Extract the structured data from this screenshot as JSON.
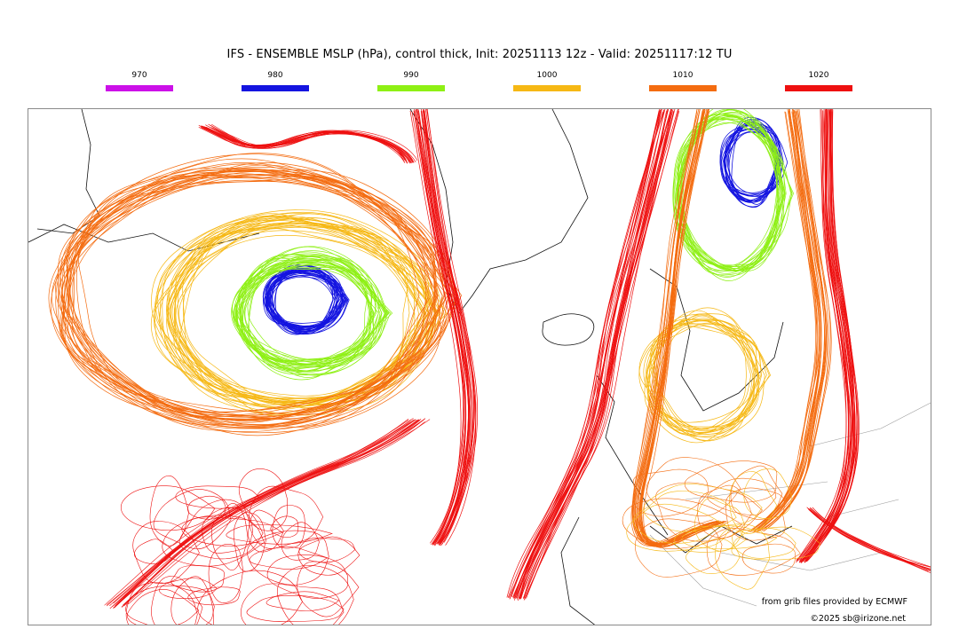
{
  "title": "IFS - ENSEMBLE MSLP (hPa), control thick, Init: 20251113 12z - Valid: 20251117:12 TU",
  "legend": [
    {
      "label": "970",
      "color": "#cc10e8"
    },
    {
      "label": "980",
      "color": "#1414e0"
    },
    {
      "label": "990",
      "color": "#8ef014"
    },
    {
      "label": "1000",
      "color": "#f6b814"
    },
    {
      "label": "1010",
      "color": "#f46c10"
    },
    {
      "label": "1020",
      "color": "#ee1010"
    }
  ],
  "credits": {
    "source": "from grib files provided by ECMWF",
    "copyright": "©2025 sb@irizone.net"
  },
  "map": {
    "content": "ensemble spaghetti isobars over North Atlantic and Europe",
    "coastline_color": "#111111",
    "border_color": "#9a9a9a"
  }
}
